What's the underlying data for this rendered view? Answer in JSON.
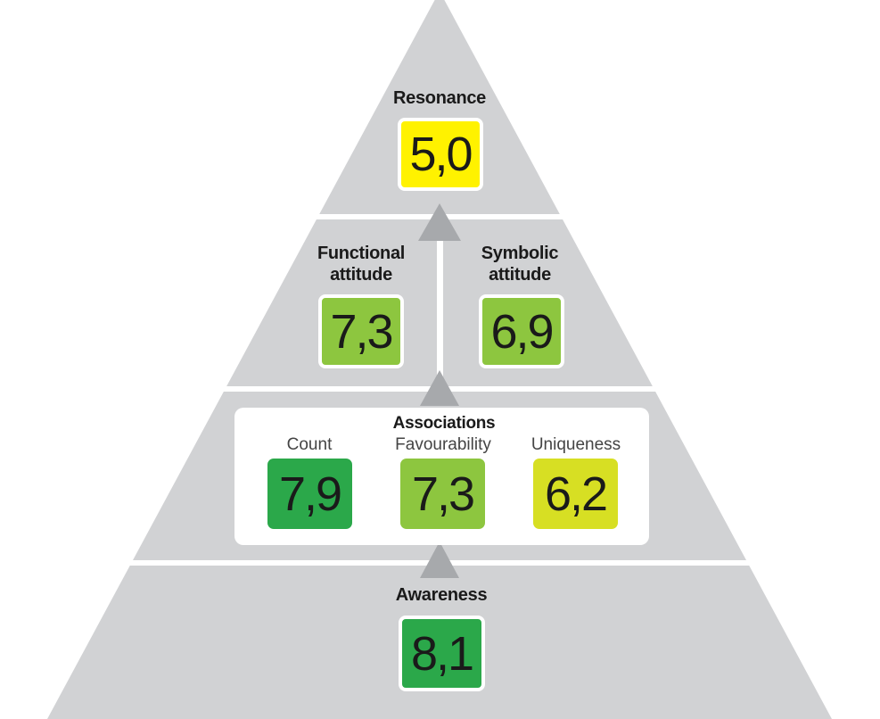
{
  "resonance": {
    "label": "Resonance",
    "score": "5,0",
    "color": "#fff200"
  },
  "functional": {
    "label_line1": "Functional",
    "label_line2": "attitude",
    "score": "7,3",
    "color": "#8dc63f"
  },
  "symbolic": {
    "label_line1": "Symbolic",
    "label_line2": "attitude",
    "score": "6,9",
    "color": "#8dc63f"
  },
  "associations": {
    "title": "Associations",
    "count": {
      "label": "Count",
      "score": "7,9",
      "color": "#2ba84a"
    },
    "favourability": {
      "label": "Favourability",
      "score": "7,3",
      "color": "#8dc63f"
    },
    "uniqueness": {
      "label": "Uniqueness",
      "score": "6,2",
      "color": "#d7df23"
    }
  },
  "awareness": {
    "label": "Awareness",
    "score": "8,1",
    "color": "#2ba84a"
  },
  "colors": {
    "pyramid": "#d1d2d4",
    "arrow": "#a7a9ac",
    "separator": "#ffffff"
  }
}
